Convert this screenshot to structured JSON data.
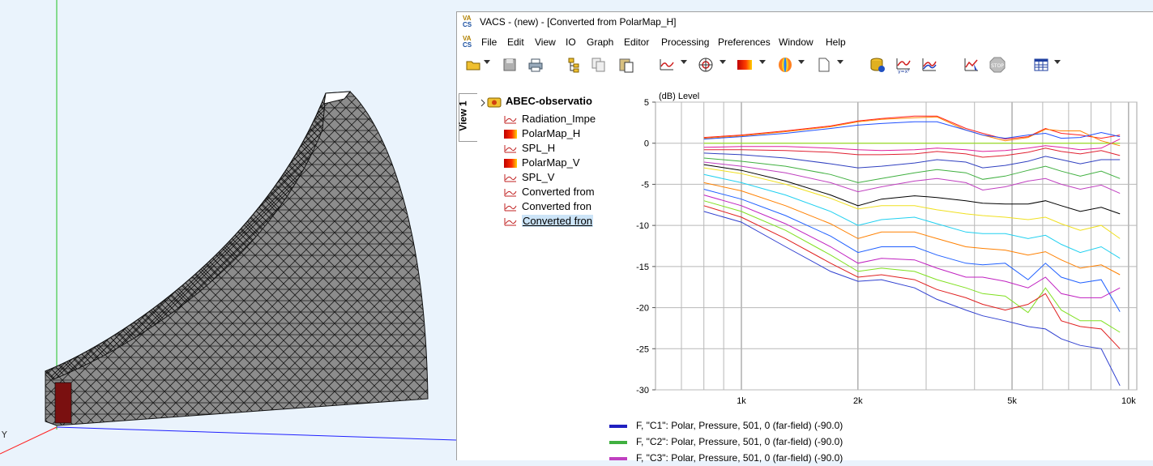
{
  "window": {
    "title": "VACS - (new) - [Converted from PolarMap_H]",
    "logo_top": "VA",
    "logo_bottom": "CS"
  },
  "menu": [
    "File",
    "Edit",
    "View",
    "IO",
    "Graph",
    "Editor",
    "Processing",
    "Preferences",
    "Window",
    "Help"
  ],
  "viewport": {
    "axis_label": "Y",
    "bg_color": "#eaf3fc",
    "mesh_color": "#8c8c8c"
  },
  "tree": {
    "view_tab": "View 1",
    "root": "ABEC-observatio",
    "items": [
      {
        "label": "Radiation_Impe",
        "icon": "spl-curve-icon"
      },
      {
        "label": "PolarMap_H",
        "icon": "polar-map-icon"
      },
      {
        "label": "SPL_H",
        "icon": "spl-curve-icon"
      },
      {
        "label": "PolarMap_V",
        "icon": "polar-map-icon"
      },
      {
        "label": "SPL_V",
        "icon": "spl-curve-icon"
      },
      {
        "label": "Converted from",
        "icon": "spl-curve-icon"
      },
      {
        "label": "Converted fron",
        "icon": "spl-curve-icon"
      },
      {
        "label": "Converted fron",
        "icon": "spl-curve-icon",
        "selected": true
      }
    ]
  },
  "chart_data": {
    "type": "line",
    "ylabel": "(dB)  Level",
    "xscale": "log",
    "xlim": [
      600,
      10500
    ],
    "ylim": [
      -30,
      5
    ],
    "yticks": [
      5,
      0,
      -5,
      -10,
      -15,
      -20,
      -25,
      -30
    ],
    "xticks": [
      {
        "value": 1000,
        "label": "1k"
      },
      {
        "value": 2000,
        "label": "2k"
      },
      {
        "value": 5000,
        "label": "5k"
      },
      {
        "value": 10000,
        "label": "10k"
      }
    ],
    "x": [
      800,
      1000,
      1300,
      1700,
      2000,
      2300,
      2800,
      3200,
      3800,
      4200,
      4800,
      5500,
      6100,
      6700,
      7500,
      8500,
      9500
    ],
    "series": [
      {
        "color": "#ff2020",
        "values": [
          0.7,
          1.0,
          1.5,
          2.1,
          2.7,
          3.0,
          3.3,
          3.3,
          1.8,
          1.2,
          0.5,
          0.8,
          1.8,
          1.2,
          1.0,
          0.6,
          1.0
        ]
      },
      {
        "color": "#ff8000",
        "values": [
          0.6,
          0.9,
          1.4,
          2.0,
          2.6,
          2.9,
          3.1,
          3.2,
          1.6,
          1.0,
          0.3,
          0.7,
          1.7,
          1.5,
          1.5,
          0.3,
          -0.3
        ]
      },
      {
        "color": "#2050ff",
        "values": [
          0.5,
          0.8,
          1.2,
          1.8,
          2.2,
          2.4,
          2.6,
          2.6,
          1.6,
          1.0,
          0.6,
          1.0,
          1.2,
          0.6,
          0.7,
          1.3,
          0.8
        ]
      },
      {
        "color": "#8ce000",
        "values": [
          0.0,
          0.0,
          0.0,
          0.0,
          0.0,
          0.0,
          0.0,
          0.0,
          0.0,
          0.0,
          0.0,
          0.0,
          0.0,
          0.0,
          0.0,
          0.0,
          0.0
        ]
      },
      {
        "color": "#e0209a",
        "values": [
          -0.5,
          -0.4,
          -0.4,
          -0.6,
          -0.8,
          -0.9,
          -0.8,
          -0.6,
          -0.8,
          -1.0,
          -0.9,
          -0.6,
          -0.3,
          -0.5,
          -0.8,
          -0.6,
          0.5
        ]
      },
      {
        "color": "#e02030",
        "values": [
          -0.8,
          -0.8,
          -0.9,
          -1.1,
          -1.4,
          -1.4,
          -1.3,
          -1.0,
          -1.3,
          -1.7,
          -1.5,
          -1.1,
          -0.6,
          -1.0,
          -1.3,
          -0.9,
          -1.5
        ]
      },
      {
        "color": "#3040c0",
        "values": [
          -1.2,
          -1.4,
          -1.8,
          -2.5,
          -3.0,
          -2.8,
          -2.4,
          -2.0,
          -2.3,
          -3.0,
          -2.7,
          -2.2,
          -1.6,
          -2.0,
          -2.5,
          -2.0,
          -2.0
        ]
      },
      {
        "color": "#40b040",
        "values": [
          -1.8,
          -2.2,
          -2.8,
          -3.8,
          -4.8,
          -4.3,
          -3.6,
          -3.2,
          -3.6,
          -4.4,
          -4.0,
          -3.3,
          -2.8,
          -3.4,
          -4.0,
          -3.4,
          -4.3
        ]
      },
      {
        "color": "#c040c0",
        "values": [
          -2.3,
          -2.8,
          -3.6,
          -4.8,
          -5.9,
          -5.3,
          -4.6,
          -4.3,
          -4.8,
          -5.7,
          -5.3,
          -4.6,
          -4.3,
          -5.0,
          -5.6,
          -5.1,
          -6.1
        ]
      },
      {
        "color": "#000000",
        "values": [
          -2.6,
          -3.3,
          -4.6,
          -6.3,
          -7.6,
          -6.8,
          -6.4,
          -6.6,
          -7.0,
          -7.3,
          -7.4,
          -7.4,
          -7.0,
          -7.6,
          -8.3,
          -7.8,
          -8.6
        ]
      },
      {
        "color": "#f0e020",
        "values": [
          -3.0,
          -3.7,
          -5.0,
          -6.7,
          -8.0,
          -7.6,
          -7.6,
          -8.1,
          -8.6,
          -8.8,
          -9.0,
          -9.3,
          -9.0,
          -9.8,
          -10.6,
          -10.0,
          -11.6
        ]
      },
      {
        "color": "#20d0f0",
        "values": [
          -3.8,
          -4.8,
          -6.3,
          -8.3,
          -10.0,
          -9.3,
          -9.0,
          -9.8,
          -10.8,
          -11.0,
          -11.0,
          -11.6,
          -11.2,
          -12.3,
          -13.3,
          -12.6,
          -14.0
        ]
      },
      {
        "color": "#ff8000",
        "values": [
          -4.8,
          -5.8,
          -7.6,
          -9.8,
          -11.6,
          -10.8,
          -10.8,
          -11.6,
          -12.6,
          -12.8,
          -13.0,
          -13.6,
          -13.2,
          -14.2,
          -15.2,
          -14.8,
          -16.0
        ]
      },
      {
        "color": "#2060ff",
        "values": [
          -5.6,
          -6.8,
          -8.8,
          -11.3,
          -13.3,
          -12.6,
          -12.6,
          -13.6,
          -14.6,
          -14.8,
          -14.6,
          -16.6,
          -14.6,
          -16.3,
          -17.0,
          -16.6,
          -20.5
        ]
      },
      {
        "color": "#c020c0",
        "values": [
          -6.3,
          -7.6,
          -9.8,
          -12.6,
          -14.6,
          -14.0,
          -14.2,
          -15.2,
          -16.3,
          -16.3,
          -16.8,
          -17.6,
          -16.3,
          -18.3,
          -18.8,
          -18.8,
          -17.6
        ]
      },
      {
        "color": "#80e020",
        "values": [
          -7.0,
          -8.3,
          -10.6,
          -13.6,
          -15.6,
          -15.2,
          -15.6,
          -16.6,
          -17.6,
          -18.3,
          -18.6,
          -20.6,
          -17.6,
          -20.3,
          -21.6,
          -21.6,
          -23.0
        ]
      },
      {
        "color": "#e02020",
        "values": [
          -7.6,
          -9.0,
          -11.6,
          -14.6,
          -16.3,
          -16.0,
          -16.6,
          -17.8,
          -18.8,
          -19.6,
          -20.3,
          -19.6,
          -18.3,
          -21.6,
          -22.3,
          -22.6,
          -25.0
        ]
      },
      {
        "color": "#3040d0",
        "values": [
          -8.3,
          -9.6,
          -12.6,
          -15.6,
          -16.8,
          -16.6,
          -17.6,
          -19.0,
          -20.3,
          -21.0,
          -21.6,
          -22.3,
          -22.6,
          -23.8,
          -24.6,
          -25.0,
          -29.5
        ]
      }
    ]
  },
  "legend": [
    {
      "color": "#2020c0",
      "label": "F, \"C1\": Polar, Pressure, 501, 0 (far-field) (-90.0)"
    },
    {
      "color": "#40b040",
      "label": "F, \"C2\": Polar, Pressure, 501, 0 (far-field) (-90.0)"
    },
    {
      "color": "#c040c0",
      "label": "F, \"C3\": Polar, Pressure, 501, 0 (far-field) (-90.0)"
    }
  ]
}
